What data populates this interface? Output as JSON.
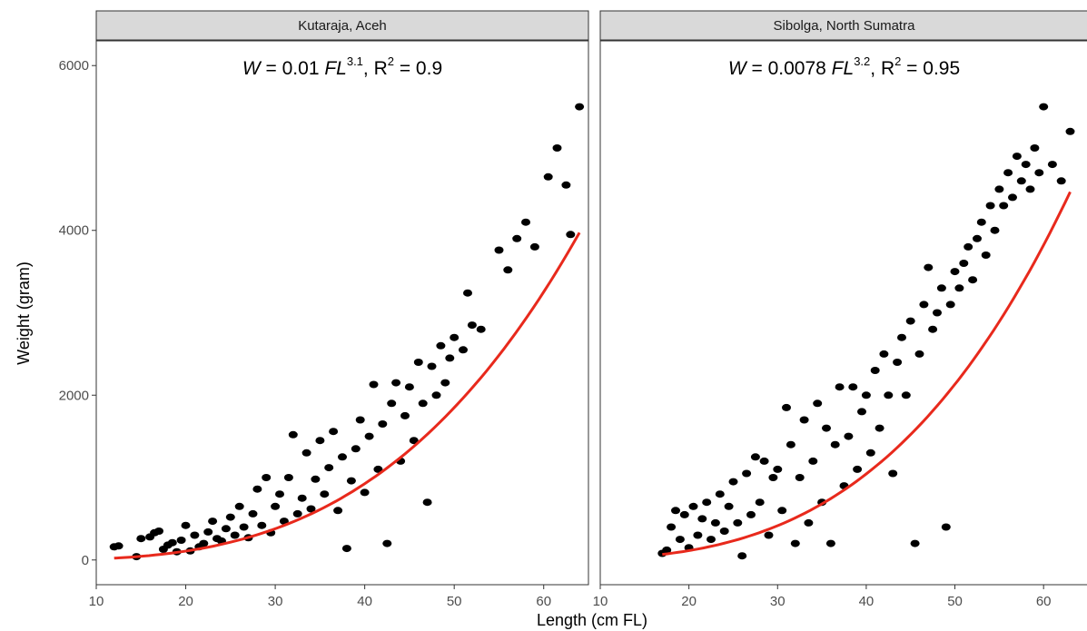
{
  "chart_data": {
    "type": "scatter",
    "xlabel": "Length (cm FL)",
    "ylabel": "Weight (gram)",
    "xlim": [
      10,
      65
    ],
    "ylim": [
      -300,
      6300
    ],
    "x_ticks": [
      "10",
      "20",
      "30",
      "40",
      "50",
      "60"
    ],
    "y_ticks": [
      "0",
      "2000",
      "4000",
      "6000"
    ],
    "grid": false,
    "colors": {
      "points": "#000000",
      "fit": "#e8291c",
      "strip": "#d9d9d9",
      "frame": "#333333"
    },
    "panels": [
      {
        "strip": "Kutaraja, Aceh",
        "annotation": {
          "w": "W",
          "eq1": " = 0.01 ",
          "fl": "FL",
          "exp": "3.1",
          "sep": ",  ",
          "r": "R",
          "r_exp": "2",
          "r_val": " = 0.9"
        },
        "fit": {
          "a": 0.01,
          "b": 3.1,
          "x_range": [
            12,
            64
          ]
        },
        "points": [
          [
            12.0,
            160
          ],
          [
            12.5,
            170
          ],
          [
            14.5,
            40
          ],
          [
            15.0,
            260
          ],
          [
            16.0,
            280
          ],
          [
            16.5,
            330
          ],
          [
            17.0,
            350
          ],
          [
            17.5,
            130
          ],
          [
            18.0,
            180
          ],
          [
            18.5,
            210
          ],
          [
            19.0,
            100
          ],
          [
            19.5,
            240
          ],
          [
            20.0,
            420
          ],
          [
            20.5,
            110
          ],
          [
            21.0,
            300
          ],
          [
            21.5,
            160
          ],
          [
            22.0,
            200
          ],
          [
            22.5,
            340
          ],
          [
            23.0,
            470
          ],
          [
            23.5,
            260
          ],
          [
            24.0,
            230
          ],
          [
            24.5,
            380
          ],
          [
            25.0,
            520
          ],
          [
            25.5,
            300
          ],
          [
            26.0,
            650
          ],
          [
            26.5,
            400
          ],
          [
            27.0,
            270
          ],
          [
            27.5,
            560
          ],
          [
            28.0,
            860
          ],
          [
            28.5,
            420
          ],
          [
            29.0,
            1000
          ],
          [
            29.5,
            330
          ],
          [
            30.0,
            650
          ],
          [
            30.5,
            800
          ],
          [
            31.0,
            470
          ],
          [
            31.5,
            1000
          ],
          [
            32.0,
            1520
          ],
          [
            32.5,
            560
          ],
          [
            33.0,
            750
          ],
          [
            33.5,
            1300
          ],
          [
            34.0,
            620
          ],
          [
            34.5,
            980
          ],
          [
            35.0,
            1450
          ],
          [
            35.5,
            800
          ],
          [
            36.0,
            1120
          ],
          [
            36.5,
            1560
          ],
          [
            37.0,
            600
          ],
          [
            37.5,
            1250
          ],
          [
            38.0,
            140
          ],
          [
            38.5,
            960
          ],
          [
            39.0,
            1350
          ],
          [
            39.5,
            1700
          ],
          [
            40.0,
            820
          ],
          [
            40.5,
            1500
          ],
          [
            41.0,
            2130
          ],
          [
            41.5,
            1100
          ],
          [
            42.0,
            1650
          ],
          [
            42.5,
            200
          ],
          [
            43.0,
            1900
          ],
          [
            43.5,
            2150
          ],
          [
            44.0,
            1200
          ],
          [
            44.5,
            1750
          ],
          [
            45.0,
            2100
          ],
          [
            45.5,
            1450
          ],
          [
            46.0,
            2400
          ],
          [
            46.5,
            1900
          ],
          [
            47.0,
            700
          ],
          [
            47.5,
            2350
          ],
          [
            48.0,
            2000
          ],
          [
            48.5,
            2600
          ],
          [
            49.0,
            2150
          ],
          [
            49.5,
            2450
          ],
          [
            50.0,
            2700
          ],
          [
            51.0,
            2550
          ],
          [
            51.5,
            3240
          ],
          [
            52.0,
            2850
          ],
          [
            53.0,
            2800
          ],
          [
            55.0,
            3760
          ],
          [
            56.0,
            3520
          ],
          [
            57.0,
            3900
          ],
          [
            58.0,
            4100
          ],
          [
            59.0,
            3800
          ],
          [
            60.5,
            4650
          ],
          [
            61.5,
            5000
          ],
          [
            62.5,
            4550
          ],
          [
            63.0,
            3950
          ],
          [
            64.0,
            5500
          ]
        ]
      },
      {
        "strip": "Sibolga, North Sumatra",
        "annotation": {
          "w": "W",
          "eq1": " = 0.0078 ",
          "fl": "FL",
          "exp": "3.2",
          "sep": ",  ",
          "r": "R",
          "r_exp": "2",
          "r_val": " = 0.95"
        },
        "fit": {
          "a": 0.0078,
          "b": 3.2,
          "x_range": [
            17,
            63
          ]
        },
        "points": [
          [
            17.0,
            80
          ],
          [
            17.5,
            120
          ],
          [
            18.0,
            400
          ],
          [
            18.5,
            600
          ],
          [
            19.0,
            250
          ],
          [
            19.5,
            550
          ],
          [
            20.0,
            150
          ],
          [
            20.5,
            650
          ],
          [
            21.0,
            300
          ],
          [
            21.5,
            500
          ],
          [
            22.0,
            700
          ],
          [
            22.5,
            250
          ],
          [
            23.0,
            450
          ],
          [
            23.5,
            800
          ],
          [
            24.0,
            350
          ],
          [
            24.5,
            650
          ],
          [
            25.0,
            950
          ],
          [
            25.5,
            450
          ],
          [
            26.0,
            50
          ],
          [
            26.5,
            1050
          ],
          [
            27.0,
            550
          ],
          [
            27.5,
            1250
          ],
          [
            28.0,
            700
          ],
          [
            28.5,
            1200
          ],
          [
            29.0,
            300
          ],
          [
            29.5,
            1000
          ],
          [
            30.0,
            1100
          ],
          [
            30.5,
            600
          ],
          [
            31.0,
            1850
          ],
          [
            31.5,
            1400
          ],
          [
            32.0,
            200
          ],
          [
            32.5,
            1000
          ],
          [
            33.0,
            1700
          ],
          [
            33.5,
            450
          ],
          [
            34.0,
            1200
          ],
          [
            34.5,
            1900
          ],
          [
            35.0,
            700
          ],
          [
            35.5,
            1600
          ],
          [
            36.0,
            200
          ],
          [
            36.5,
            1400
          ],
          [
            37.0,
            2100
          ],
          [
            37.5,
            900
          ],
          [
            38.0,
            1500
          ],
          [
            38.5,
            2100
          ],
          [
            39.0,
            1100
          ],
          [
            39.5,
            1800
          ],
          [
            40.0,
            2000
          ],
          [
            40.5,
            1300
          ],
          [
            41.0,
            2300
          ],
          [
            41.5,
            1600
          ],
          [
            42.0,
            2500
          ],
          [
            42.5,
            2000
          ],
          [
            43.0,
            1050
          ],
          [
            43.5,
            2400
          ],
          [
            44.0,
            2700
          ],
          [
            44.5,
            2000
          ],
          [
            45.0,
            2900
          ],
          [
            45.5,
            200
          ],
          [
            46.0,
            2500
          ],
          [
            46.5,
            3100
          ],
          [
            47.0,
            3550
          ],
          [
            47.5,
            2800
          ],
          [
            48.0,
            3000
          ],
          [
            48.5,
            3300
          ],
          [
            49.0,
            400
          ],
          [
            49.5,
            3100
          ],
          [
            50.0,
            3500
          ],
          [
            50.5,
            3300
          ],
          [
            51.0,
            3600
          ],
          [
            51.5,
            3800
          ],
          [
            52.0,
            3400
          ],
          [
            52.5,
            3900
          ],
          [
            53.0,
            4100
          ],
          [
            53.5,
            3700
          ],
          [
            54.0,
            4300
          ],
          [
            54.5,
            4000
          ],
          [
            55.0,
            4500
          ],
          [
            55.5,
            4300
          ],
          [
            56.0,
            4700
          ],
          [
            56.5,
            4400
          ],
          [
            57.0,
            4900
          ],
          [
            57.5,
            4600
          ],
          [
            58.0,
            4800
          ],
          [
            58.5,
            4500
          ],
          [
            59.0,
            5000
          ],
          [
            59.5,
            4700
          ],
          [
            60.0,
            5500
          ],
          [
            61.0,
            4800
          ],
          [
            62.0,
            4600
          ],
          [
            63.0,
            5200
          ]
        ]
      }
    ]
  }
}
